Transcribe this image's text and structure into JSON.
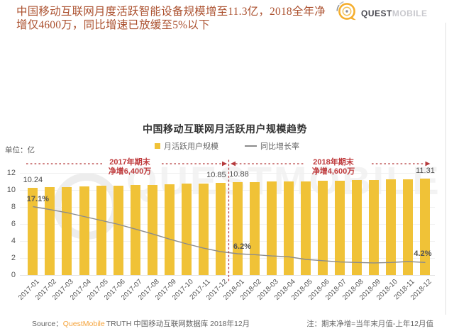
{
  "header": {
    "headline": "中国移动互联网月度活跃智能设备规模增至11.3亿，2018全年净增仅4600万，同比增速已放缓至5%以下",
    "logo": {
      "part1": "QUEST",
      "part2": "MOBILE"
    }
  },
  "watermark": {
    "text": "QUESTMOBILE"
  },
  "chart_data": {
    "type": "bar",
    "subtype": "bar+line combo",
    "title": "中国移动互联网月活跃用户规模趋势",
    "unit_label": "单位：亿",
    "legend": {
      "bars": "月活跃用户规模",
      "line": "同比增长率",
      "position": "top-center"
    },
    "grid": "horizontal, very light",
    "categories": [
      "2017-01",
      "2017-02",
      "2017-03",
      "2017-04",
      "2017-05",
      "2017-06",
      "2017-07",
      "2017-08",
      "2017-09",
      "2017-10",
      "2017-11",
      "2017-12",
      "2018-01",
      "2018-02",
      "2018-03",
      "2018-04",
      "2018-05",
      "2018-06",
      "2018-07",
      "2018-08",
      "2018-09",
      "2018-10",
      "2018-11",
      "2018-12"
    ],
    "series": [
      {
        "name": "月活跃用户规模",
        "type": "bar",
        "unit": "亿",
        "color": "#f0c237",
        "values": [
          10.24,
          10.3,
          10.35,
          10.4,
          10.46,
          10.51,
          10.57,
          10.62,
          10.68,
          10.73,
          10.79,
          10.85,
          10.88,
          10.92,
          10.96,
          11.0,
          11.04,
          11.08,
          11.12,
          11.16,
          11.19,
          11.23,
          11.27,
          11.31
        ]
      },
      {
        "name": "同比增长率",
        "type": "line",
        "unit": "%",
        "color": "#8c8c8c",
        "values": [
          17.1,
          16.4,
          15.7,
          14.8,
          13.9,
          13.0,
          11.9,
          10.8,
          9.6,
          8.5,
          7.5,
          6.7,
          6.2,
          6.0,
          5.7,
          5.5,
          4.9,
          4.6,
          4.3,
          4.2,
          4.1,
          4.2,
          4.4,
          4.2
        ]
      }
    ],
    "bar_value_labels": [
      {
        "month": "2017-01",
        "text": "10.24"
      },
      {
        "month": "2017-12",
        "text": "10.85"
      },
      {
        "month": "2018-01",
        "text": "10.88"
      },
      {
        "month": "2018-12",
        "text": "11.31"
      }
    ],
    "line_value_labels": [
      {
        "month": "2017-01",
        "text": "17.1%"
      },
      {
        "month": "2018-01",
        "text": "6.2%"
      },
      {
        "month": "2018-12",
        "text": "4.2%"
      }
    ],
    "annotations": [
      {
        "id": "2017",
        "line1": "2017年期末",
        "line2": "净增6,400万"
      },
      {
        "id": "2018",
        "line1": "2018年期末",
        "line2": "净增4,600万"
      }
    ],
    "y_axis": {
      "ticks": [
        0,
        2,
        4,
        6,
        8,
        10,
        12
      ],
      "max": 12,
      "min": 0
    },
    "colors": {
      "bar": "#f0c237",
      "line": "#8c8c8c",
      "annotation": "#bf3a3c",
      "watermark": "#ededed"
    }
  },
  "footer": {
    "source_label": "Source：",
    "source_brand": "QuestMobile",
    "source_rest": "TRUTH 中国移动互联网数据库 2018年12月",
    "note": "注：期末净增=当年末月值-上年12月值"
  }
}
